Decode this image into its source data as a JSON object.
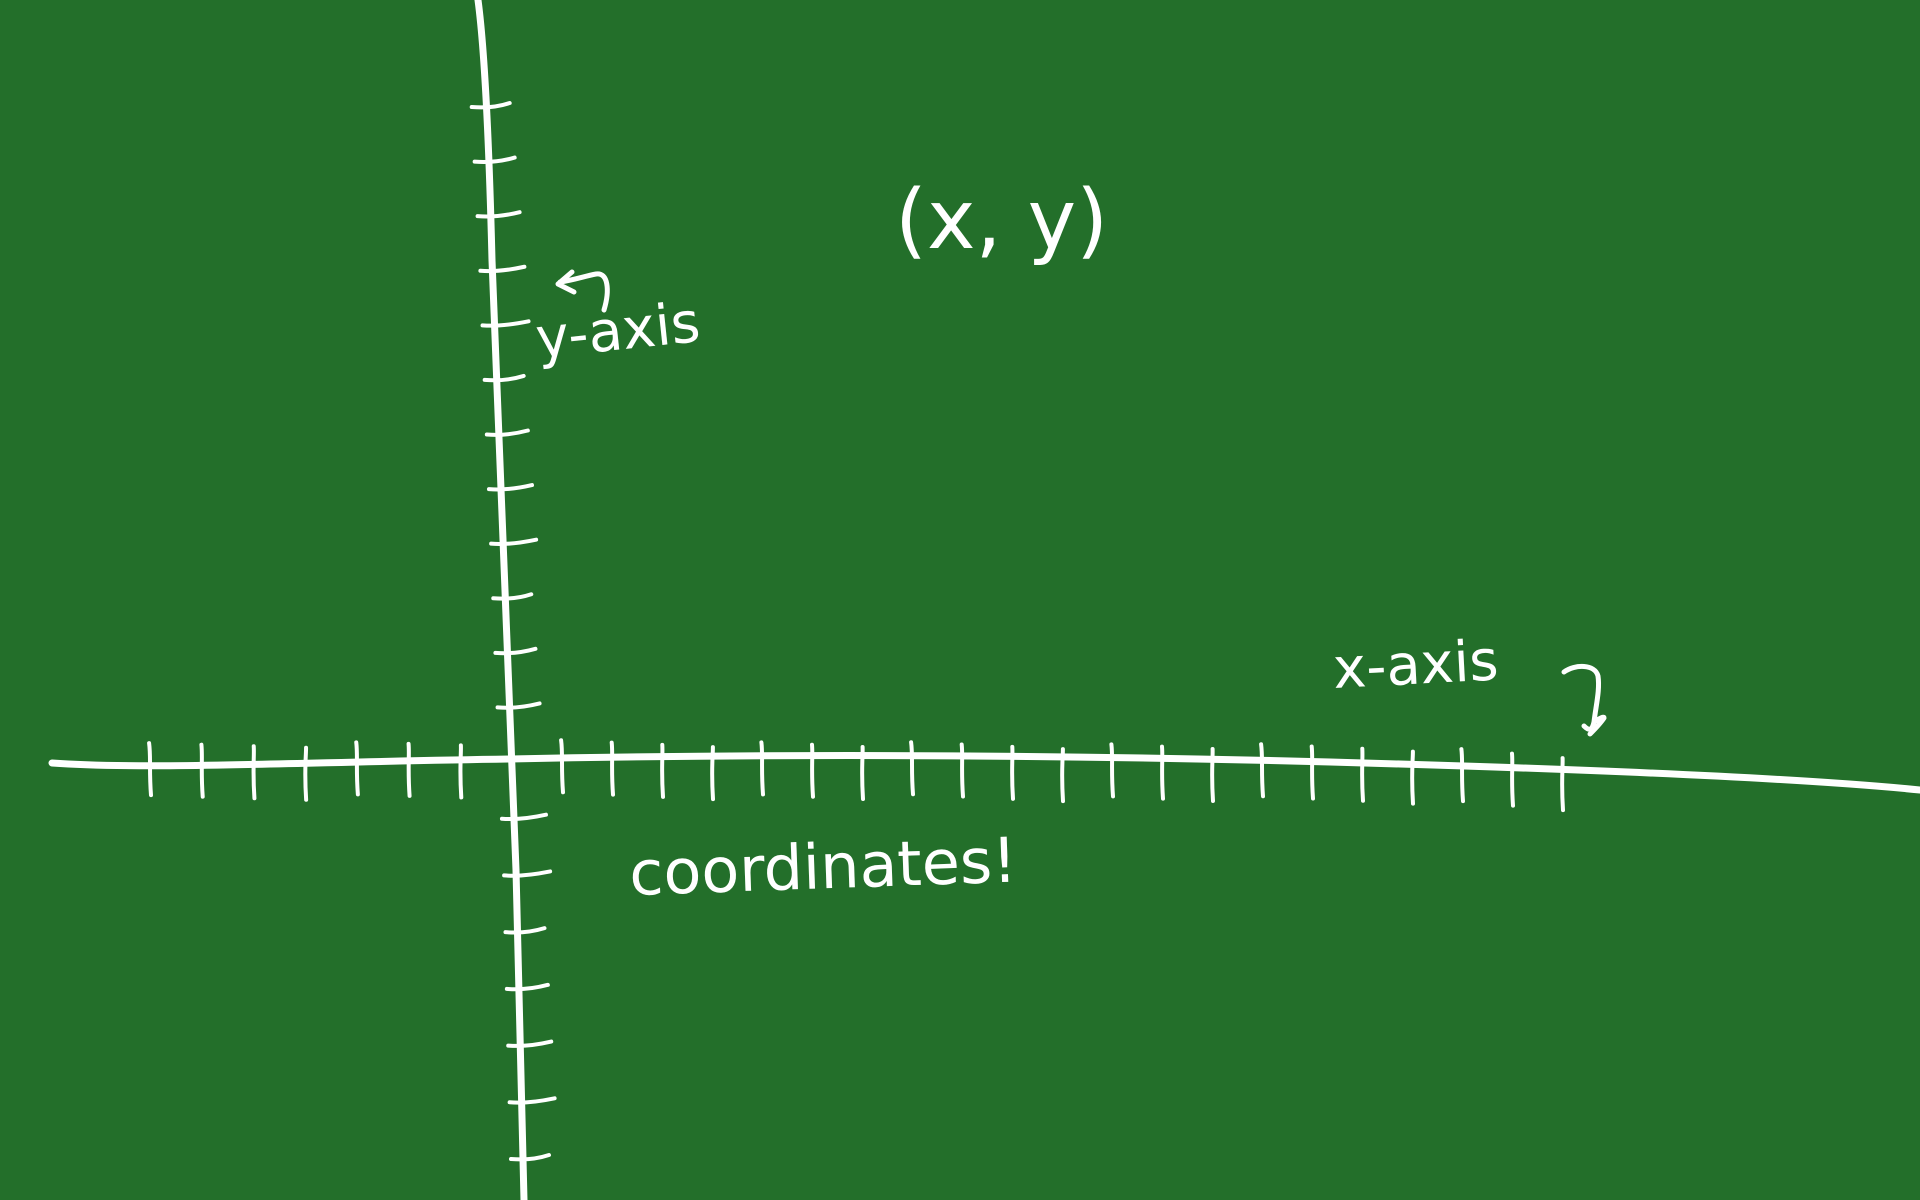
{
  "board": {
    "background_color": "#236f2a",
    "chalk_color": "#ffffff"
  },
  "labels": {
    "coordinate_pair": "(x, y)",
    "y_axis": "y-axis",
    "x_axis": "x-axis",
    "caption": "coordinates!"
  },
  "axes": {
    "x_tick_count_left_of_origin": 7,
    "x_tick_count_right_of_origin": 21,
    "y_tick_count_above_origin": 12,
    "y_tick_count_below_origin": 7
  }
}
